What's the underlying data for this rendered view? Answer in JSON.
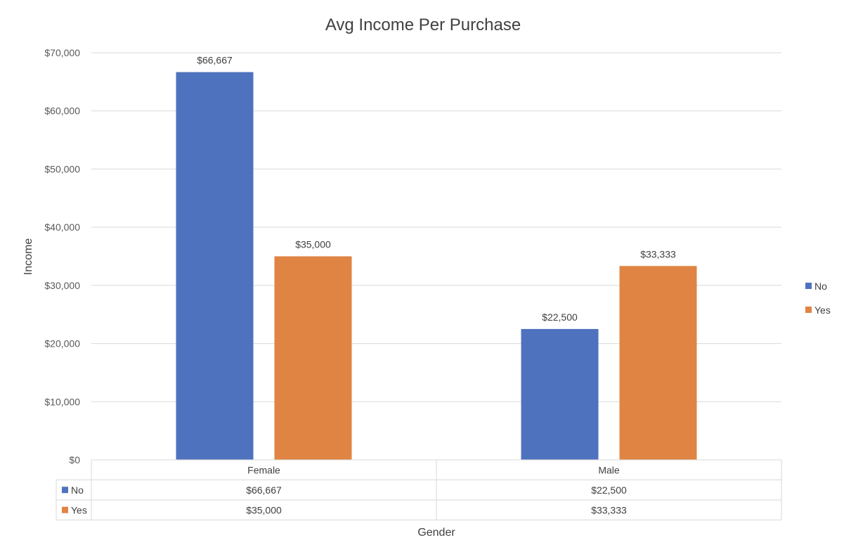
{
  "chart_data": {
    "type": "bar",
    "title": "Avg Income Per Purchase",
    "xlabel": "Gender",
    "ylabel": "Income",
    "categories": [
      "Female",
      "Male"
    ],
    "series": [
      {
        "name": "No",
        "values": [
          66667,
          22500
        ],
        "labels": [
          "$66,667",
          "$22,500"
        ],
        "color": "#4E72BE"
      },
      {
        "name": "Yes",
        "values": [
          35000,
          33333
        ],
        "labels": [
          "$35,000",
          "$33,333"
        ],
        "color": "#E08443"
      }
    ],
    "ylim": [
      0,
      70000
    ],
    "yticks": [
      0,
      10000,
      20000,
      30000,
      40000,
      50000,
      60000,
      70000
    ],
    "ytick_labels": [
      "$0",
      "$10,000",
      "$20,000",
      "$30,000",
      "$40,000",
      "$50,000",
      "$60,000",
      "$70,000"
    ],
    "grid": true,
    "legend_position": "right",
    "data_table": true
  }
}
